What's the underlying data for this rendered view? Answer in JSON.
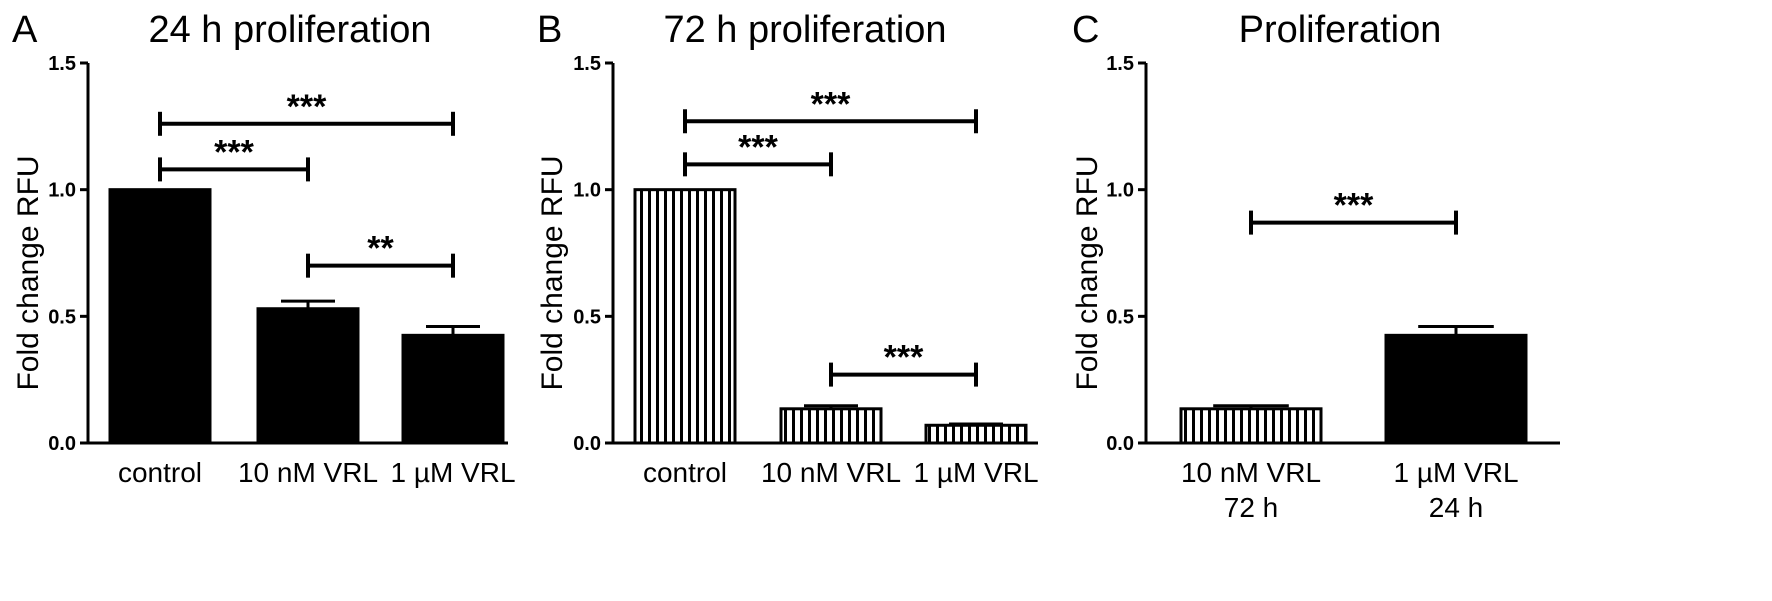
{
  "chart_data": [
    {
      "type": "bar",
      "panel_label": "A",
      "title": "24 h proliferation",
      "xlabel": "",
      "ylabel": "Fold change RFU",
      "ylim": [
        0,
        1.5
      ],
      "yticks": [
        "0.0",
        "0.5",
        "1.0",
        "1.5"
      ],
      "grid": false,
      "categories": [
        [
          "control"
        ],
        [
          "10 nM VRL"
        ],
        [
          "1 µM VRL"
        ]
      ],
      "values": [
        1.0,
        0.53,
        0.425
      ],
      "errors": [
        0.0,
        0.03,
        0.035
      ],
      "fills": [
        "solid",
        "solid",
        "solid"
      ],
      "significance": [
        {
          "from": 0,
          "to": 1,
          "y": 1.08,
          "label": "***"
        },
        {
          "from": 0,
          "to": 2,
          "y": 1.26,
          "label": "***"
        },
        {
          "from": 1,
          "to": 2,
          "y": 0.7,
          "label": "**"
        }
      ]
    },
    {
      "type": "bar",
      "panel_label": "B",
      "title": "72 h proliferation",
      "xlabel": "",
      "ylabel": "Fold change RFU",
      "ylim": [
        0,
        1.5
      ],
      "yticks": [
        "0.0",
        "0.5",
        "1.0",
        "1.5"
      ],
      "grid": false,
      "categories": [
        [
          "control"
        ],
        [
          "10 nM VRL"
        ],
        [
          "1 µM VRL"
        ]
      ],
      "values": [
        1.0,
        0.135,
        0.07
      ],
      "errors": [
        0.0,
        0.012,
        0.005
      ],
      "fills": [
        "striped",
        "striped",
        "striped"
      ],
      "significance": [
        {
          "from": 0,
          "to": 1,
          "y": 1.1,
          "label": "***"
        },
        {
          "from": 0,
          "to": 2,
          "y": 1.27,
          "label": "***"
        },
        {
          "from": 1,
          "to": 2,
          "y": 0.27,
          "label": "***"
        }
      ]
    },
    {
      "type": "bar",
      "panel_label": "C",
      "title": "Proliferation",
      "xlabel": "",
      "ylabel": "Fold change RFU",
      "ylim": [
        0,
        1.5
      ],
      "yticks": [
        "0.0",
        "0.5",
        "1.0",
        "1.5"
      ],
      "grid": false,
      "categories": [
        [
          "10  nM VRL",
          "72 h"
        ],
        [
          "1 µM VRL",
          "24 h"
        ]
      ],
      "values": [
        0.135,
        0.425
      ],
      "errors": [
        0.012,
        0.035
      ],
      "fills": [
        "striped",
        "solid"
      ],
      "significance": [
        {
          "from": 0,
          "to": 1,
          "y": 0.87,
          "label": "***"
        }
      ]
    }
  ]
}
